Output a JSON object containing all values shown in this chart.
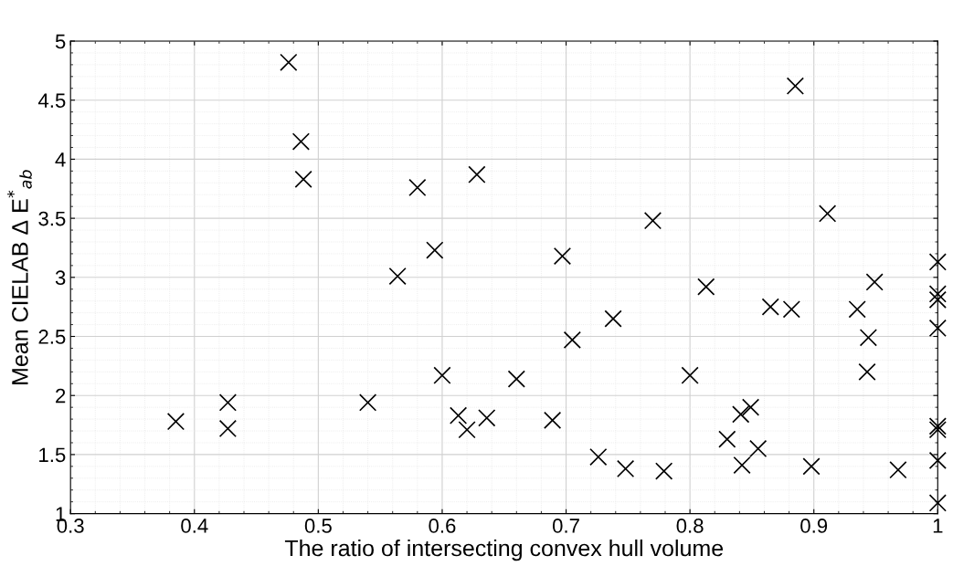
{
  "chart_data": {
    "type": "scatter",
    "xlabel": "The ratio of intersecting convex hull volume",
    "ylabel": "Mean CIELAB Δ E$^{*}$$_{ab}$",
    "x": [
      0.385,
      0.427,
      0.427,
      0.476,
      0.486,
      0.488,
      0.54,
      0.564,
      0.58,
      0.594,
      0.6,
      0.613,
      0.62,
      0.628,
      0.636,
      0.66,
      0.689,
      0.697,
      0.705,
      0.726,
      0.738,
      0.748,
      0.77,
      0.779,
      0.8,
      0.813,
      0.83,
      0.841,
      0.842,
      0.849,
      0.855,
      0.865,
      0.882,
      0.885,
      0.898,
      0.911,
      0.935,
      0.943,
      0.944,
      0.949,
      0.968,
      1.0,
      1.0,
      1.0,
      1.0,
      1.0,
      1.0,
      1.0,
      1.0
    ],
    "values": [
      1.78,
      1.94,
      1.72,
      4.82,
      4.15,
      3.83,
      1.94,
      3.01,
      3.76,
      3.23,
      2.17,
      1.83,
      1.71,
      3.87,
      1.81,
      2.14,
      1.79,
      3.18,
      2.47,
      1.48,
      2.65,
      1.38,
      3.48,
      1.36,
      2.17,
      2.92,
      1.63,
      1.84,
      1.41,
      1.9,
      1.55,
      2.75,
      2.73,
      4.62,
      1.4,
      3.54,
      2.73,
      2.2,
      2.49,
      2.96,
      1.37,
      3.13,
      2.86,
      2.81,
      2.57,
      1.74,
      1.71,
      1.45,
      1.09
    ],
    "color": "#000000",
    "marker": "cross",
    "xlim": [
      0.3,
      1
    ],
    "ylim": [
      1,
      5
    ],
    "xticks": [
      0.3,
      0.4,
      0.5,
      0.6,
      0.7,
      0.8,
      0.9,
      1
    ],
    "yticks": [
      1,
      1.5,
      2,
      2.5,
      3,
      3.5,
      4,
      4.5,
      5
    ],
    "grid": true
  }
}
